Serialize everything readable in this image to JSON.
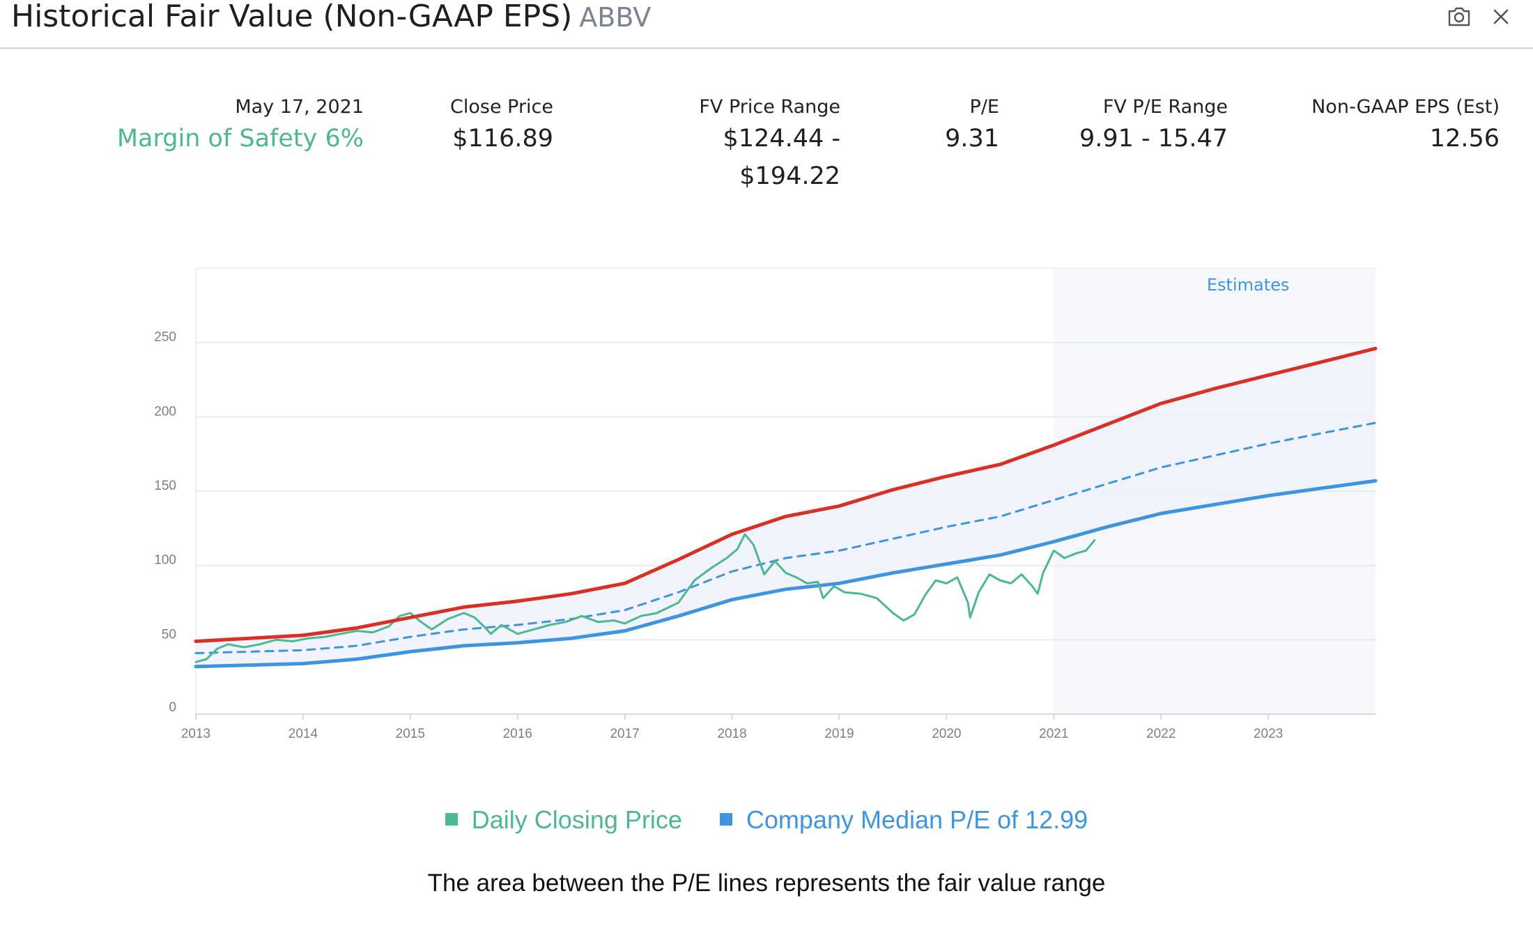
{
  "header": {
    "title": "Historical Fair Value (Non-GAAP EPS)",
    "ticker": "ABBV",
    "camera_icon": "camera-icon",
    "close_icon": "close-icon"
  },
  "stats": {
    "date": "May 17, 2021",
    "margin_of_safety": "Margin of Safety 6%",
    "close_price_label": "Close Price",
    "close_price_value": "$116.89",
    "fv_price_range_label": "FV Price Range",
    "fv_price_range_line1": "$124.44 -",
    "fv_price_range_line2": "$194.22",
    "pe_label": "P/E",
    "pe_value": "9.31",
    "fv_pe_range_label": "FV P/E Range",
    "fv_pe_range_value": "9.91 - 15.47",
    "eps_label": "Non-GAAP EPS (Est)",
    "eps_value": "12.56"
  },
  "colors": {
    "green": "#4bb88e",
    "blue": "#3e94de",
    "red": "#d93025",
    "band_fill": "#eef2fc",
    "estimates_bg": "#f5f7fa"
  },
  "chart_data": {
    "type": "line",
    "estimates_label": "Estimates",
    "estimates_start": 2021,
    "x_ticks": [
      "2013",
      "2014",
      "2015",
      "2016",
      "2017",
      "2018",
      "2019",
      "2020",
      "2021",
      "2022",
      "2023"
    ],
    "y_ticks": [
      0,
      50,
      100,
      150,
      200,
      250
    ],
    "xlim": [
      2013,
      2024
    ],
    "ylim": [
      0,
      300
    ],
    "grid": true,
    "series": [
      {
        "name": "",
        "role": "upper_pe",
        "color": "#d93025",
        "x": [
          2013,
          2014,
          2014.5,
          2015,
          2015.5,
          2016,
          2016.5,
          2017,
          2017.5,
          2018,
          2018.5,
          2019,
          2019.5,
          2020,
          2020.5,
          2021,
          2021.5,
          2022,
          2022.5,
          2023,
          2023.5,
          2024
        ],
        "y": [
          49,
          53,
          58,
          65,
          72,
          76,
          81,
          88,
          104,
          121,
          133,
          140,
          151,
          160,
          168,
          181,
          195,
          209,
          219,
          228,
          237,
          246
        ]
      },
      {
        "name": "",
        "role": "median_pe",
        "color": "#3e94de",
        "dashed": true,
        "x": [
          2013,
          2014,
          2014.5,
          2015,
          2015.5,
          2016,
          2016.5,
          2017,
          2017.5,
          2018,
          2018.5,
          2019,
          2019.5,
          2020,
          2020.5,
          2021,
          2021.5,
          2022,
          2022.5,
          2023,
          2023.5,
          2024
        ],
        "y": [
          41,
          43,
          46,
          52,
          57,
          60,
          64,
          70,
          82,
          96,
          105,
          110,
          118,
          126,
          133,
          144,
          155,
          166,
          174,
          182,
          189,
          196
        ]
      },
      {
        "name": "",
        "role": "lower_pe",
        "color": "#3e94de",
        "x": [
          2013,
          2014,
          2014.5,
          2015,
          2015.5,
          2016,
          2016.5,
          2017,
          2017.5,
          2018,
          2018.5,
          2019,
          2019.5,
          2020,
          2020.5,
          2021,
          2021.5,
          2022,
          2022.5,
          2023,
          2023.5,
          2024
        ],
        "y": [
          32,
          34,
          37,
          42,
          46,
          48,
          51,
          56,
          66,
          77,
          84,
          88,
          95,
          101,
          107,
          116,
          126,
          135,
          141,
          147,
          152,
          157
        ]
      },
      {
        "name": "",
        "role": "close_price",
        "color": "#4bb88e",
        "x": [
          2013,
          2013.1,
          2013.2,
          2013.3,
          2013.45,
          2013.6,
          2013.75,
          2013.9,
          2014.05,
          2014.2,
          2014.35,
          2014.5,
          2014.65,
          2014.8,
          2014.9,
          2015,
          2015.1,
          2015.2,
          2015.35,
          2015.5,
          2015.6,
          2015.7,
          2015.75,
          2015.85,
          2016,
          2016.15,
          2016.3,
          2016.45,
          2016.6,
          2016.75,
          2016.9,
          2017,
          2017.15,
          2017.3,
          2017.5,
          2017.65,
          2017.8,
          2017.95,
          2018.05,
          2018.12,
          2018.2,
          2018.3,
          2018.4,
          2018.5,
          2018.6,
          2018.7,
          2018.8,
          2018.85,
          2018.95,
          2019.05,
          2019.2,
          2019.35,
          2019.5,
          2019.6,
          2019.7,
          2019.8,
          2019.9,
          2020,
          2020.1,
          2020.2,
          2020.22,
          2020.3,
          2020.4,
          2020.5,
          2020.6,
          2020.7,
          2020.8,
          2020.85,
          2020.9,
          2021,
          2021.1,
          2021.2,
          2021.3,
          2021.38
        ],
        "y": [
          35,
          37,
          44,
          47,
          45,
          47,
          50,
          49,
          51,
          52,
          54,
          56,
          55,
          59,
          66,
          68,
          62,
          57,
          64,
          68,
          65,
          58,
          54,
          60,
          54,
          57,
          60,
          62,
          66,
          62,
          63,
          61,
          66,
          68,
          75,
          90,
          98,
          105,
          111,
          121,
          114,
          94,
          103,
          95,
          92,
          88,
          89,
          78,
          86,
          82,
          81,
          78,
          68,
          63,
          67,
          80,
          90,
          88,
          92,
          75,
          65,
          82,
          94,
          90,
          88,
          94,
          86,
          81,
          95,
          110,
          105,
          108,
          110,
          117
        ]
      }
    ],
    "legend": [
      {
        "label": "Daily Closing Price",
        "color": "#4bb88e"
      },
      {
        "label": "Company Median P/E of 12.99",
        "color": "#3e94de"
      }
    ],
    "legend_position": "bottom"
  },
  "footnote": "The area between the P/E lines represents the fair value range"
}
